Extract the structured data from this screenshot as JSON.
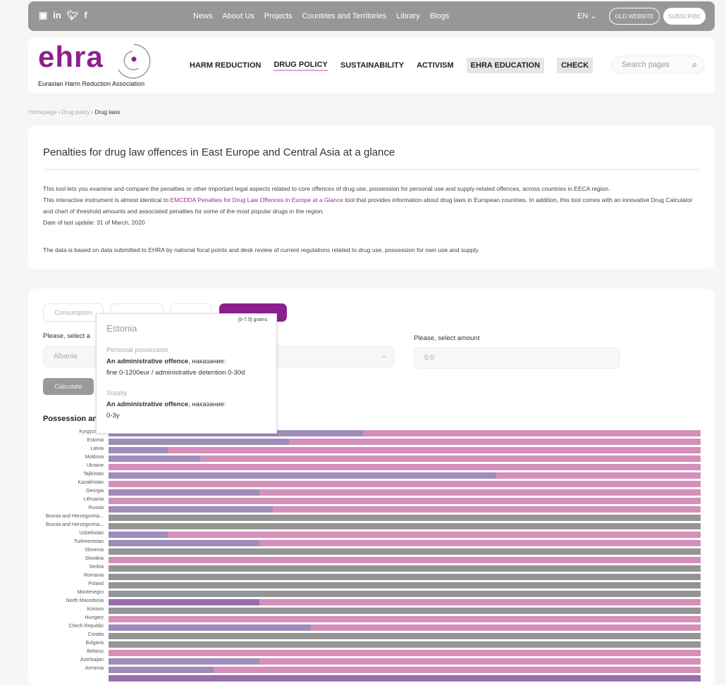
{
  "topbar": {
    "social": [
      "youtube-icon",
      "linkedin-icon",
      "twitter-icon",
      "facebook-icon"
    ],
    "nav": [
      "News",
      "About Us",
      "Projects",
      "Countries and Territories",
      "Library",
      "Blogs"
    ],
    "lang": "EN",
    "old_website": "OLD WEBSITE",
    "subscribe": "SUBSCRIBE"
  },
  "header": {
    "logo": "ehra",
    "logo_sub": "Eurasian Harm Reduction Association",
    "nav": [
      "HARM REDUCTION",
      "DRUG POLICY",
      "SUSTAINABILITY",
      "ACTIVISM",
      "EHRA EDUCATION",
      "CHECK"
    ],
    "search_placeholder": "Search pages"
  },
  "breadcrumb": [
    "Homepage",
    "Drug policy",
    "Drug laws"
  ],
  "intro": {
    "title": "Penalties for drug law offences in East Europe and Central Asia at a glance",
    "p1": "This tool lets you examine and compare the penalties or other important legal aspects related to core offences of drug use, possession for personal use and supply-related offences, across countries in EECA region.",
    "p2_before": "This interactive instrument is almost identical to ",
    "p2_link": "EMCDDA Penalties for Drug Law Offences in Europe at a Glance",
    "p2_after": " tool that provides information about drug laws in European countries. In addition, this tool comes with an innovative Drug Calculator and chart of threshold amounts and associated penalties for some of the most popular drugs in the region.",
    "date": "Date of last update: 31 of March, 2020",
    "p3": "The data is based on data submitted to EHRA by national focal points and desk review of current regulations related to drug use, possession for own use and supply."
  },
  "tool": {
    "tabs": [
      "Consumption",
      "",
      "",
      ""
    ],
    "select_country_label": "Please, select a",
    "country_value": "Albania",
    "amount_label": "Please, select amount",
    "amount_value": "0.0",
    "calculate": "Calculate",
    "chart_title": "Possession an"
  },
  "tooltip": {
    "country": "Estonia",
    "range": "[0-7.5] grams",
    "h1": "Personal possession",
    "l1_bold": "An administrative offence",
    "l1_rest": ", наказание:",
    "l1b": "fine 0-1200eur / administrative detention 0-30d",
    "h2": "Supply",
    "l2_bold": "An administrative offence",
    "l2_rest": ", наказание:",
    "l2b": "0-3y"
  },
  "colors": {
    "brand": "#8e1f8e",
    "purple": "#a08cba",
    "dark_purple": "#9a6fae",
    "pink": "#d58fbb",
    "gray": "#959595"
  },
  "chart_data": {
    "type": "bar",
    "orientation": "horizontal",
    "stacked": true,
    "rows": [
      {
        "label": "Kyrgyzstan",
        "purple": 0.43,
        "pink": 0.57,
        "gray": 0
      },
      {
        "label": "Estonia",
        "purple": 0.305,
        "pink": 0.695,
        "gray": 0
      },
      {
        "label": "Latvia",
        "purple": 0.1,
        "pink": 0.9,
        "gray": 0
      },
      {
        "label": "Moldova",
        "purple": 0.155,
        "pink": 0.845,
        "gray": 0
      },
      {
        "label": "Ukraine",
        "purple": 0,
        "pink": 1,
        "gray": 0
      },
      {
        "label": "Tajikistan",
        "purple": 0.655,
        "pink": 0.345,
        "gray": 0
      },
      {
        "label": "Kazakhstan",
        "purple": 0,
        "pink": 1,
        "gray": 0
      },
      {
        "label": "Georgia",
        "purple": 0.255,
        "pink": 0.745,
        "gray": 0
      },
      {
        "label": "Lithuania",
        "purple": 0,
        "pink": 1,
        "gray": 0
      },
      {
        "label": "Russia",
        "purple": 0.277,
        "pink": 0.723,
        "gray": 0
      },
      {
        "label": "Bosnia and Herzegovina...",
        "purple": 0,
        "pink": 0,
        "gray": 1
      },
      {
        "label": "Bosnia and Herzegovina...",
        "purple": 0,
        "pink": 0,
        "gray": 1
      },
      {
        "label": "Uzbekistan",
        "purple": 0.1,
        "pink": 0.9,
        "gray": 0
      },
      {
        "label": "Turkmenistan",
        "purple": 0.255,
        "pink": 0.745,
        "gray": 0
      },
      {
        "label": "Slovenia",
        "purple": 0,
        "pink": 0,
        "gray": 1
      },
      {
        "label": "Slovakia",
        "purple": 0,
        "pink": 1,
        "gray": 0
      },
      {
        "label": "Serbia",
        "purple": 0,
        "pink": 0,
        "gray": 1
      },
      {
        "label": "Romania",
        "purple": 0,
        "pink": 0,
        "gray": 1
      },
      {
        "label": "Poland",
        "purple": 0,
        "pink": 0,
        "gray": 1
      },
      {
        "label": "Montenegro",
        "purple": 0,
        "pink": 0,
        "gray": 1
      },
      {
        "label": "North Macedonia",
        "purple": 0.255,
        "pink": 0.745,
        "gray": 0,
        "dark": true
      },
      {
        "label": "Kosovo",
        "purple": 0,
        "pink": 0,
        "gray": 1
      },
      {
        "label": "Hungary",
        "purple": 0,
        "pink": 1,
        "gray": 0
      },
      {
        "label": "Chech Republic",
        "purple": 0.342,
        "pink": 0.658,
        "gray": 0
      },
      {
        "label": "Croatia",
        "purple": 0,
        "pink": 0,
        "gray": 1
      },
      {
        "label": "Bulgaria",
        "purple": 0,
        "pink": 0,
        "gray": 1
      },
      {
        "label": "Belarus",
        "purple": 0,
        "pink": 1,
        "gray": 0
      },
      {
        "label": "Azerbaijan",
        "purple": 0.255,
        "pink": 0.745,
        "gray": 0
      },
      {
        "label": "Armenia",
        "purple": 0.177,
        "pink": 0.823,
        "gray": 0
      }
    ]
  }
}
